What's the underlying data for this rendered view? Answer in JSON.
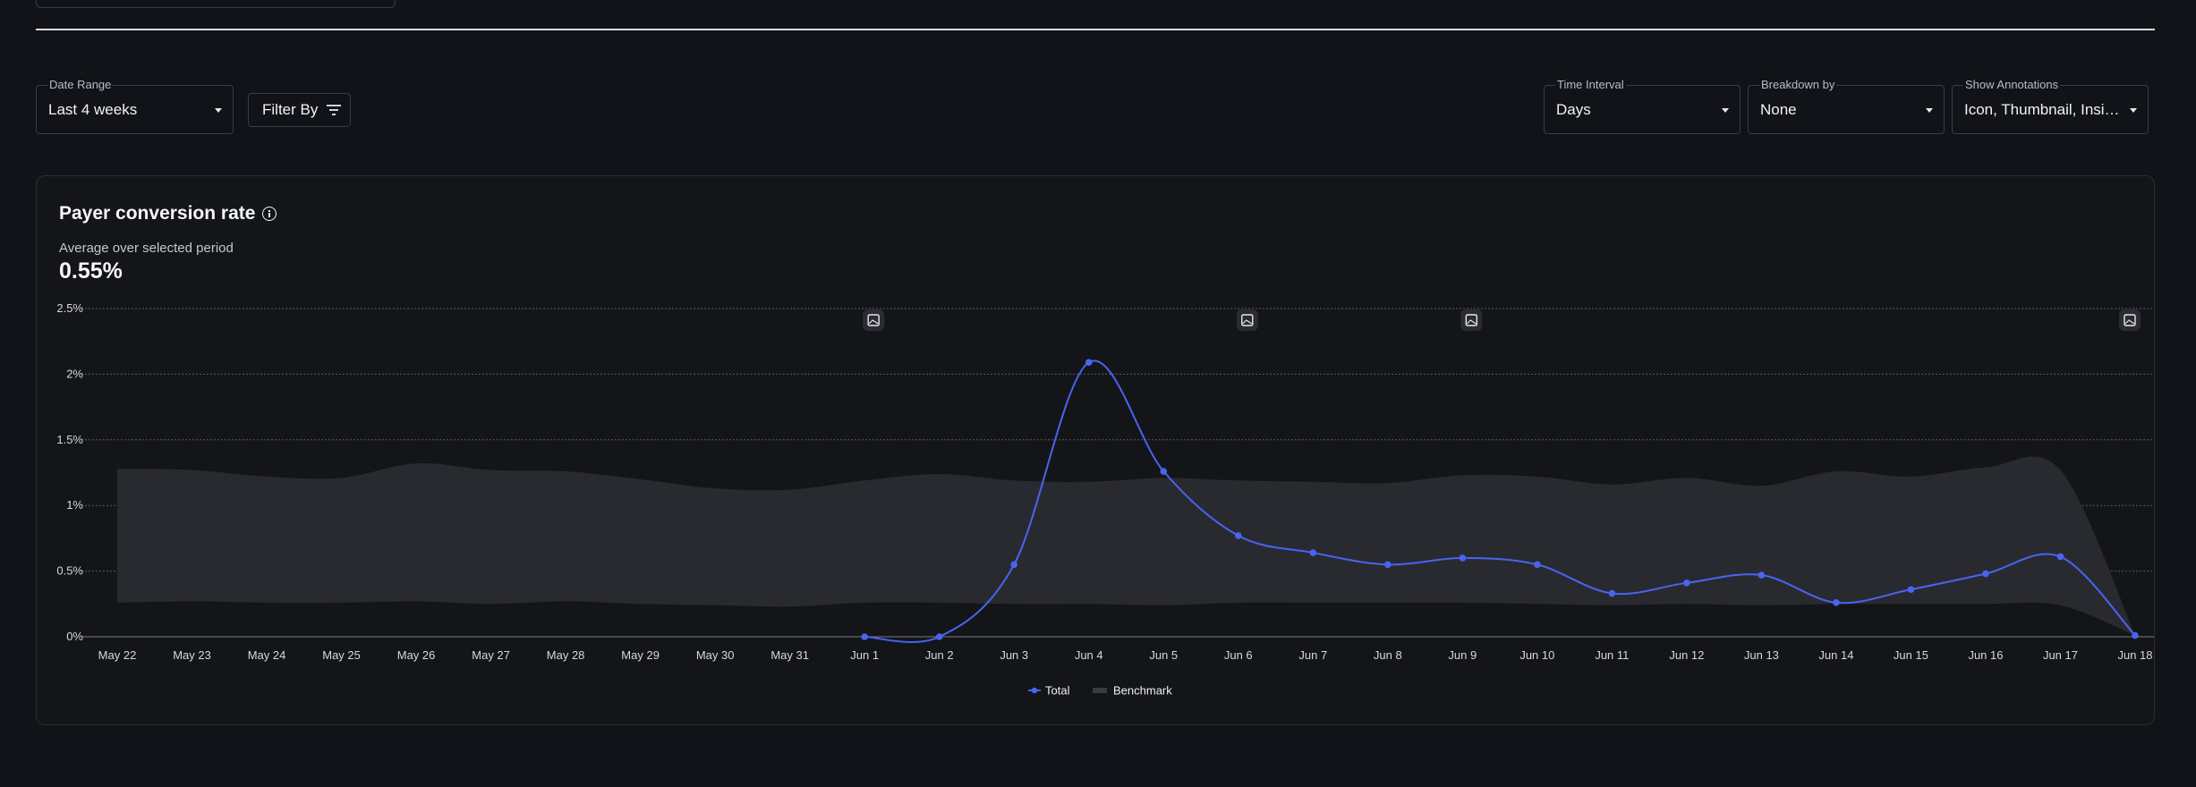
{
  "controls": {
    "date_range": {
      "label": "Date Range",
      "value": "Last 4 weeks"
    },
    "filter": {
      "label": "Filter By"
    },
    "time_interval": {
      "label": "Time Interval",
      "value": "Days"
    },
    "breakdown": {
      "label": "Breakdown by",
      "value": "None"
    },
    "annotations": {
      "label": "Show Annotations",
      "value": "Icon, Thumbnail, Insigh..."
    }
  },
  "card": {
    "title": "Payer conversion rate",
    "subtitle": "Average over selected period",
    "value": "0.55%"
  },
  "colors": {
    "total": "#4a63f0",
    "benchmark": "#2a2b31",
    "grid": "#5a5c64"
  },
  "chart_data": {
    "type": "line",
    "ylim": [
      0,
      2.5
    ],
    "y_ticks": [
      0,
      0.5,
      1,
      1.5,
      2,
      2.5
    ],
    "y_tick_labels": [
      "0%",
      "0.5%",
      "1%",
      "1.5%",
      "2%",
      "2.5%"
    ],
    "categories": [
      "May 22",
      "May 23",
      "May 24",
      "May 25",
      "May 26",
      "May 27",
      "May 28",
      "May 29",
      "May 30",
      "May 31",
      "Jun 1",
      "Jun 2",
      "Jun 3",
      "Jun 4",
      "Jun 5",
      "Jun 6",
      "Jun 7",
      "Jun 8",
      "Jun 9",
      "Jun 10",
      "Jun 11",
      "Jun 12",
      "Jun 13",
      "Jun 14",
      "Jun 15",
      "Jun 16",
      "Jun 17",
      "Jun 18"
    ],
    "series": [
      {
        "name": "Total",
        "values": [
          null,
          null,
          null,
          null,
          null,
          null,
          null,
          null,
          null,
          null,
          0,
          0,
          0.55,
          2.09,
          1.26,
          0.77,
          0.64,
          0.55,
          0.6,
          0.55,
          0.33,
          0.41,
          0.47,
          0.26,
          0.36,
          0.48,
          0.61,
          0.01
        ]
      },
      {
        "name": "Benchmark",
        "type": "band",
        "upper": [
          1.28,
          1.27,
          1.22,
          1.21,
          1.32,
          1.27,
          1.26,
          1.2,
          1.13,
          1.12,
          1.19,
          1.24,
          1.19,
          1.18,
          1.21,
          1.19,
          1.18,
          1.17,
          1.23,
          1.22,
          1.16,
          1.21,
          1.15,
          1.26,
          1.22,
          1.29,
          1.27,
          0.01
        ],
        "lower": [
          0.26,
          0.27,
          0.26,
          0.26,
          0.27,
          0.25,
          0.27,
          0.25,
          0.24,
          0.23,
          0.26,
          0.26,
          0.25,
          0.25,
          0.24,
          0.26,
          0.26,
          0.26,
          0.26,
          0.25,
          0.24,
          0.25,
          0.24,
          0.25,
          0.25,
          0.25,
          0.24,
          0.01
        ]
      }
    ],
    "annotation_markers": [
      {
        "category": "Jun 1",
        "icon": "image-icon"
      },
      {
        "category": "Jun 6",
        "icon": "gallery-icon"
      },
      {
        "category": "Jun 9",
        "icon": "image-icon"
      },
      {
        "category": "Jun 18",
        "icon": "gallery-icon"
      }
    ],
    "legend": [
      "Total",
      "Benchmark"
    ],
    "legend_position": "bottom-center",
    "grid": true
  }
}
